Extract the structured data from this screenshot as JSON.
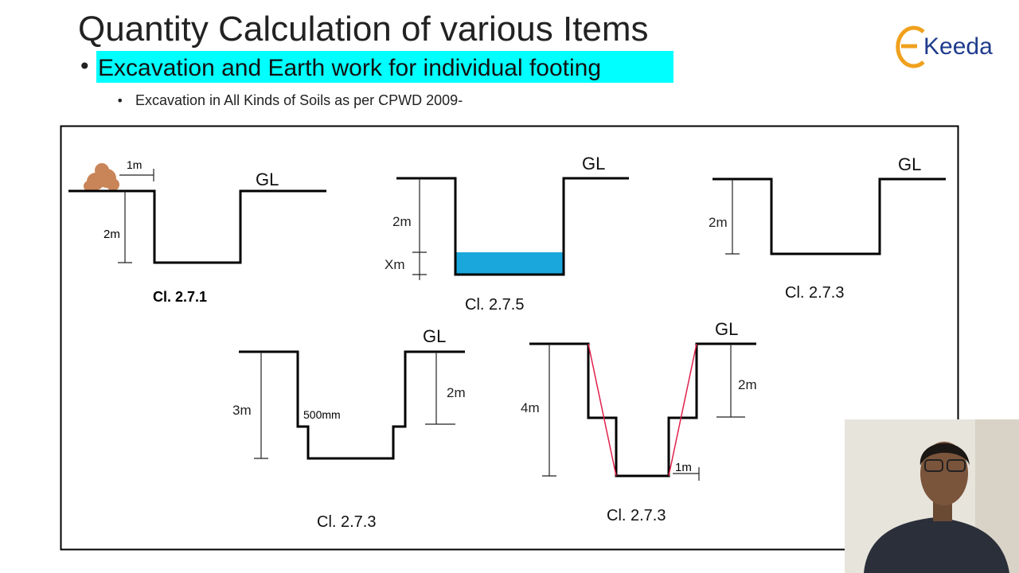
{
  "header": {
    "title": "Quantity Calculation of various Items",
    "bullet": "Excavation and Earth work for individual footing",
    "sub_bullet": "Excavation in All Kinds of Soils as per CPWD 2009-"
  },
  "logo": {
    "text": "Keeda"
  },
  "diagrams": [
    {
      "labels": [
        "1m",
        "GL",
        "2m"
      ],
      "caption": "Cl. 2.7.1"
    },
    {
      "labels": [
        "GL",
        "2m",
        "Xm"
      ],
      "caption": "Cl. 2.7.5"
    },
    {
      "labels": [
        "GL",
        "2m"
      ],
      "caption": "Cl. 2.7.3"
    },
    {
      "labels": [
        "GL",
        "3m",
        "500mm",
        "2m"
      ],
      "caption": "Cl. 2.7.3"
    },
    {
      "labels": [
        "GL",
        "4m",
        "2m",
        "1m"
      ],
      "caption": "Cl. 2.7.3"
    }
  ]
}
